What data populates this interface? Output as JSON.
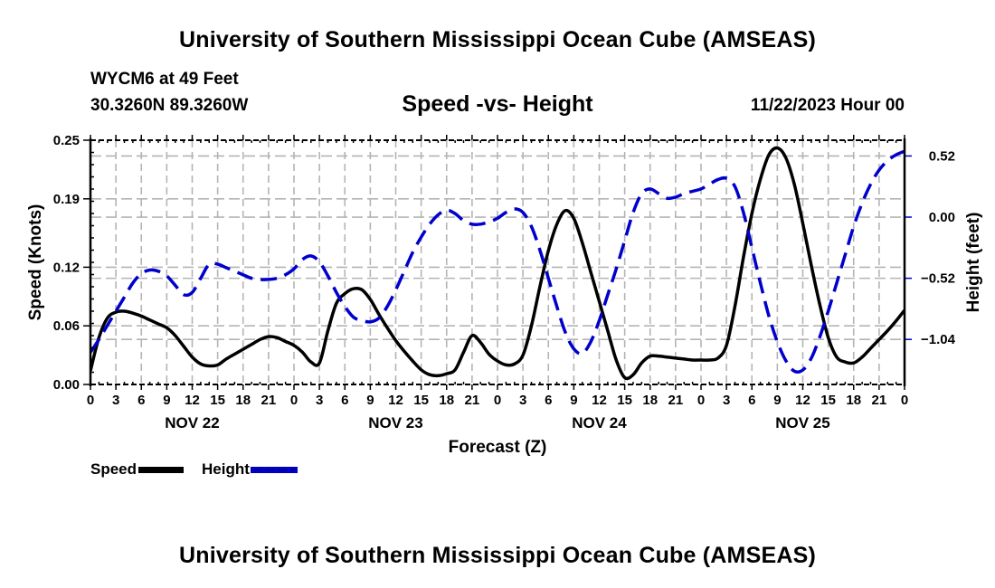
{
  "header": {
    "title": "University of Southern Mississippi Ocean Cube (AMSEAS)",
    "station": "WYCM6 at 49 Feet",
    "coordinates": "30.3260N  89.3260W",
    "subtitle": "Speed -vs- Height",
    "datestamp": "11/22/2023 Hour 00"
  },
  "footer": {
    "title": "University of Southern Mississippi Ocean Cube (AMSEAS)"
  },
  "legend": {
    "speed_label": "Speed",
    "height_label": "Height"
  },
  "colors": {
    "speed": "#000000",
    "height": "#0000cc",
    "grid": "#b4b4b4"
  },
  "chart_data": {
    "type": "line",
    "title": "Speed -vs- Height",
    "xlabel": "Forecast (Z)",
    "ylabel": "Speed (Knots)",
    "y2label": "Height (feet)",
    "xlim_hours": [
      0,
      96
    ],
    "x_tick_step_hours": 3,
    "x_tick_labels": [
      "0",
      "3",
      "6",
      "9",
      "12",
      "15",
      "18",
      "21",
      "0",
      "3",
      "6",
      "9",
      "12",
      "15",
      "18",
      "21",
      "0",
      "3",
      "6",
      "9",
      "12",
      "15",
      "18",
      "21",
      "0",
      "3",
      "6",
      "9",
      "12",
      "15",
      "18",
      "21",
      "0"
    ],
    "day_labels": [
      {
        "label": "NOV 22",
        "center_hour": 12
      },
      {
        "label": "NOV 23",
        "center_hour": 36
      },
      {
        "label": "NOV 24",
        "center_hour": 60
      },
      {
        "label": "NOV 25",
        "center_hour": 84
      }
    ],
    "ylim": [
      0,
      0.25
    ],
    "y_ticks": [
      0.0,
      0.06,
      0.12,
      0.19,
      0.25
    ],
    "y_tick_labels": [
      "0.00",
      "0.06",
      "0.12",
      "0.19",
      "0.25"
    ],
    "y2_ticks": [
      -1.04,
      -0.52,
      0.0,
      0.52
    ],
    "y2_tick_labels": [
      "−1.04",
      "−0.52",
      "0.00",
      "0.52"
    ],
    "y2_at_bottom": -1.423,
    "y2_at_top": 0.654,
    "grid": true,
    "legend_position": "bottom-left",
    "series": [
      {
        "name": "Speed",
        "axis": "left",
        "style": "solid",
        "x": [
          0,
          1,
          2,
          3,
          4,
          5,
          6,
          7,
          8,
          9,
          10,
          11,
          12,
          13,
          14,
          15,
          16,
          17,
          18,
          19,
          20,
          21,
          22,
          23,
          24,
          25,
          26,
          27,
          28,
          29,
          30,
          31,
          32,
          33,
          34,
          35,
          36,
          37,
          38,
          39,
          40,
          41,
          42,
          43,
          44,
          45,
          46,
          47,
          48,
          49,
          50,
          51,
          52,
          53,
          54,
          55,
          56,
          57,
          58,
          59,
          60,
          61,
          62,
          63,
          64,
          65,
          66,
          67,
          68,
          69,
          70,
          71,
          72,
          73,
          74,
          75,
          76,
          77,
          78,
          79,
          80,
          81,
          82,
          83,
          84,
          85,
          86,
          87,
          88,
          89,
          90,
          91,
          92,
          93,
          94,
          95,
          96
        ],
        "values": [
          0.014,
          0.048,
          0.068,
          0.074,
          0.075,
          0.073,
          0.07,
          0.066,
          0.062,
          0.058,
          0.05,
          0.039,
          0.028,
          0.021,
          0.019,
          0.02,
          0.026,
          0.031,
          0.036,
          0.041,
          0.046,
          0.049,
          0.048,
          0.044,
          0.04,
          0.033,
          0.023,
          0.022,
          0.055,
          0.083,
          0.093,
          0.098,
          0.097,
          0.087,
          0.072,
          0.058,
          0.045,
          0.034,
          0.024,
          0.015,
          0.01,
          0.009,
          0.011,
          0.015,
          0.033,
          0.05,
          0.043,
          0.031,
          0.024,
          0.02,
          0.021,
          0.03,
          0.06,
          0.1,
          0.137,
          0.164,
          0.178,
          0.17,
          0.145,
          0.115,
          0.085,
          0.055,
          0.025,
          0.007,
          0.01,
          0.022,
          0.029,
          0.029,
          0.028,
          0.027,
          0.026,
          0.025,
          0.025,
          0.025,
          0.027,
          0.04,
          0.08,
          0.13,
          0.175,
          0.21,
          0.235,
          0.242,
          0.232,
          0.205,
          0.165,
          0.122,
          0.082,
          0.048,
          0.028,
          0.023,
          0.022,
          0.028,
          0.037,
          0.046,
          0.055,
          0.065,
          0.076
        ]
      },
      {
        "name": "Height",
        "axis": "right",
        "style": "dashed",
        "x": [
          0,
          1,
          2,
          3,
          4,
          5,
          6,
          7,
          8,
          9,
          10,
          11,
          12,
          13,
          14,
          15,
          16,
          17,
          18,
          19,
          20,
          21,
          22,
          23,
          24,
          25,
          26,
          27,
          28,
          29,
          30,
          31,
          32,
          33,
          34,
          35,
          36,
          37,
          38,
          39,
          40,
          41,
          42,
          43,
          44,
          45,
          46,
          47,
          48,
          49,
          50,
          51,
          52,
          53,
          54,
          55,
          56,
          57,
          58,
          59,
          60,
          61,
          62,
          63,
          64,
          65,
          66,
          67,
          68,
          69,
          70,
          71,
          72,
          73,
          74,
          75,
          76,
          77,
          78,
          79,
          80,
          81,
          82,
          83,
          84,
          85,
          86,
          87,
          88,
          89,
          90,
          91,
          92,
          93,
          94,
          95,
          96
        ],
        "values": [
          -1.15,
          -1.04,
          -0.92,
          -0.8,
          -0.68,
          -0.56,
          -0.48,
          -0.45,
          -0.46,
          -0.5,
          -0.58,
          -0.66,
          -0.64,
          -0.52,
          -0.4,
          -0.4,
          -0.43,
          -0.46,
          -0.49,
          -0.52,
          -0.53,
          -0.53,
          -0.52,
          -0.49,
          -0.44,
          -0.36,
          -0.33,
          -0.38,
          -0.5,
          -0.64,
          -0.76,
          -0.85,
          -0.88,
          -0.89,
          -0.86,
          -0.76,
          -0.62,
          -0.46,
          -0.3,
          -0.17,
          -0.06,
          0.02,
          0.06,
          0.03,
          -0.03,
          -0.06,
          -0.06,
          -0.04,
          -0.01,
          0.04,
          0.07,
          0.04,
          -0.08,
          -0.28,
          -0.52,
          -0.76,
          -0.98,
          -1.12,
          -1.16,
          -1.06,
          -0.88,
          -0.66,
          -0.44,
          -0.2,
          0.04,
          0.2,
          0.24,
          0.2,
          0.16,
          0.17,
          0.2,
          0.22,
          0.24,
          0.28,
          0.32,
          0.33,
          0.26,
          0.04,
          -0.26,
          -0.56,
          -0.84,
          -1.06,
          -1.22,
          -1.31,
          -1.3,
          -1.2,
          -1.02,
          -0.8,
          -0.56,
          -0.32,
          -0.08,
          0.12,
          0.28,
          0.4,
          0.48,
          0.53,
          0.56
        ]
      }
    ]
  }
}
